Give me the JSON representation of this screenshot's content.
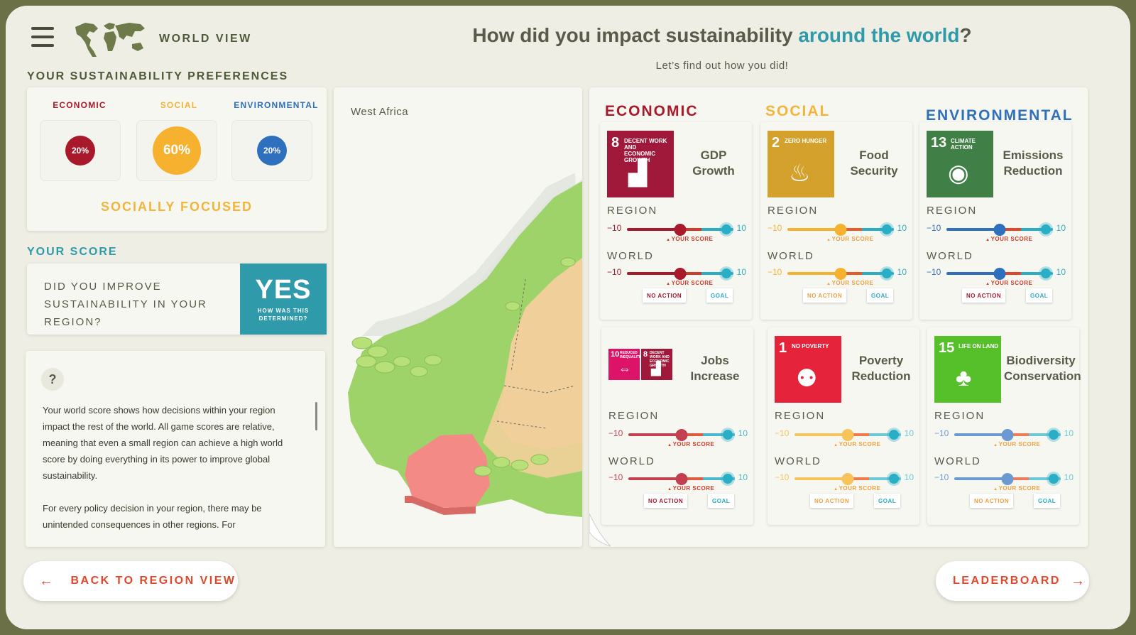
{
  "header": {
    "section": "WORLD VIEW",
    "title_part1": "How did you impact sustainability ",
    "title_part2": "around the world",
    "title_part3": "?",
    "subtitle": "Let’s find out how you did!"
  },
  "preferences": {
    "label": "YOUR SUSTAINABILITY PREFERENCES",
    "economic": {
      "name": "ECONOMIC",
      "value": "20%",
      "color": "#a8192c"
    },
    "social": {
      "name": "SOCIAL",
      "value": "60%",
      "color": "#f6b22f"
    },
    "environmental": {
      "name": "ENVIRONMENTAL",
      "value": "20%",
      "color": "#2e70bd"
    },
    "focus": "SOCIALLY FOCUSED"
  },
  "score": {
    "label": "YOUR SCORE",
    "question": "DID YOU IMPROVE SUSTAINABILITY IN YOUR REGION?",
    "answer": "YES",
    "how": "HOW WAS THIS DETERMINED?"
  },
  "info": {
    "icon": "?",
    "p1": "Your world score shows how decisions within your region impact the rest of the world. All game scores are relative, meaning that even a small region can achieve a high world score by doing everything in its power to improve global sustainability.",
    "p2": "For every policy decision in your region, there may be unintended consequences in other regions. For"
  },
  "map": {
    "region": "West Africa"
  },
  "categories": {
    "economic": "ECONOMIC",
    "social": "SOCIAL",
    "environmental": "ENVIRONMENTAL"
  },
  "slider_labels": {
    "region": "REGION",
    "world": "WORLD",
    "min": "−10",
    "max": "10",
    "your_score": "YOUR SCORE",
    "no_action": "NO ACTION",
    "goal": "GOAL"
  },
  "sdgs": [
    {
      "name1": "GDP",
      "name2": "Growth",
      "num": "8",
      "small": "DECENT WORK AND ECONOMIC GROWTH",
      "region_score": 0.5,
      "world_score": 0.5,
      "faded": false
    },
    {
      "name1": "Food",
      "name2": "Security",
      "num": "2",
      "small": "ZERO HUNGER",
      "region_score": 0.5,
      "world_score": 0.5,
      "faded": true
    },
    {
      "name1": "Emissions",
      "name2": "Reduction",
      "num": "13",
      "small": "CLIMATE ACTION",
      "region_score": 0.5,
      "world_score": 0.5,
      "faded": false
    },
    {
      "name1": "Jobs",
      "name2": "Increase",
      "num": "10",
      "num2": "8",
      "small": "REDUCED INEQUALITIES",
      "small2": "DECENT WORK AND ECONOMIC GROWTH",
      "region_score": 0.5,
      "world_score": 0.5,
      "faded": false
    },
    {
      "name1": "Poverty",
      "name2": "Reduction",
      "num": "1",
      "small": "NO POVERTY",
      "region_score": 0.5,
      "world_score": 0.5,
      "faded": true
    },
    {
      "name1": "Biodiversity",
      "name2": "Conservation",
      "num": "15",
      "small": "LIFE ON LAND",
      "region_score": 0.5,
      "world_score": 0.5,
      "faded": true
    }
  ],
  "nav": {
    "back": "BACK TO REGION VIEW",
    "leaderboard": "LEADERBOARD"
  }
}
